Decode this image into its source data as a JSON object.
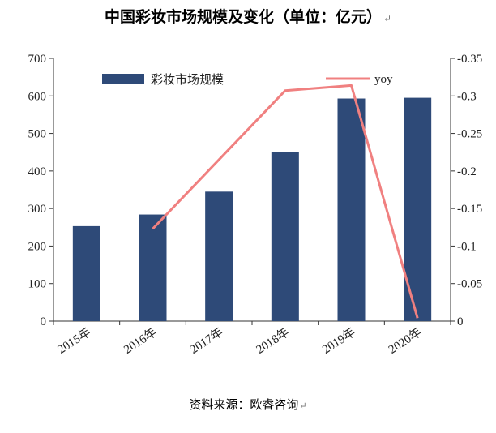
{
  "title": "中国彩妆市场规模及变化（单位：亿元）",
  "title_mark": "↵",
  "source": "资料来源：欧睿咨询",
  "source_mark": "↵",
  "colors": {
    "bar": "#2e4a78",
    "line": "#f08080",
    "axis": "#333333",
    "text": "#222222"
  },
  "chart_data": {
    "type": "bar",
    "categories": [
      "2015年",
      "2016年",
      "2017年",
      "2018年",
      "2019年",
      "2020年"
    ],
    "series": [
      {
        "name": "彩妆市场规模",
        "type": "bar",
        "axis": "left",
        "values": [
          253,
          284,
          345,
          451,
          593,
          595
        ]
      },
      {
        "name": "yoy",
        "type": "line",
        "axis": "right",
        "values": [
          null,
          0.123,
          0.215,
          0.307,
          0.314,
          0.004
        ]
      }
    ],
    "ylim_left": [
      0,
      700
    ],
    "yticks_left": [
      "0",
      "100",
      "200",
      "300",
      "400",
      "500",
      "600",
      "700"
    ],
    "ylim_right": [
      0,
      0.35
    ],
    "yticks_right": [
      "0",
      "0.05",
      "0.1",
      "0.15",
      "0.2",
      "0.25",
      "0.3",
      "0.35"
    ],
    "legend": {
      "bar_label": "彩妆市场规模",
      "line_label": "yoy"
    },
    "grid": false
  }
}
